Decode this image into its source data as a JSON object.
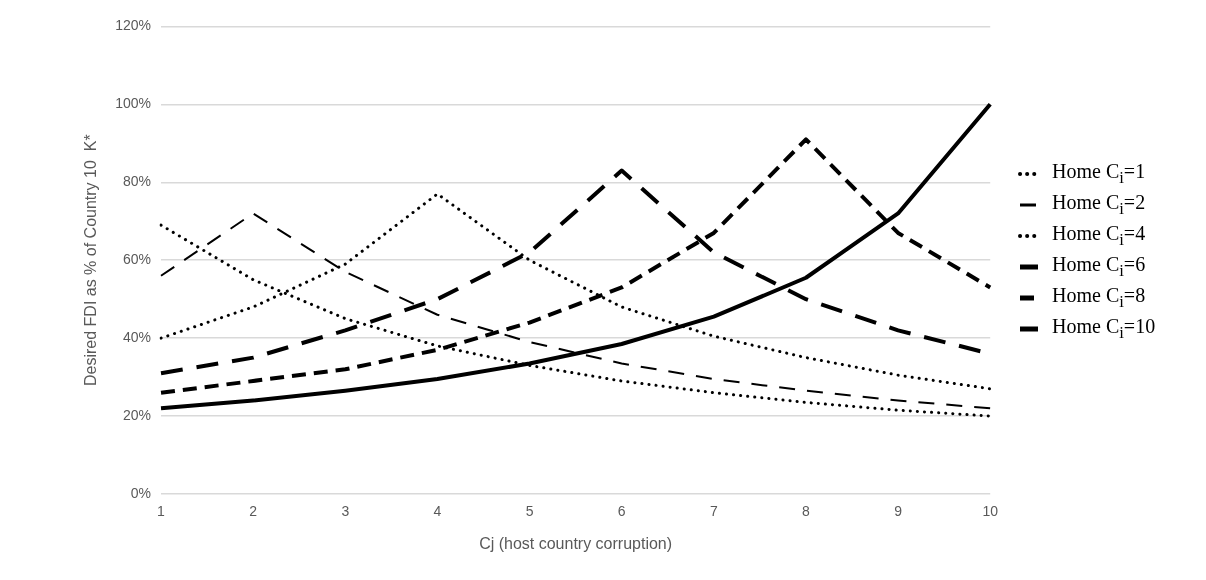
{
  "chart_data": {
    "type": "line",
    "xlabel": "Cj (host country corruption)",
    "ylabel": "Desired FDI as % of Country 10  K*",
    "categories": [
      "1",
      "2",
      "3",
      "4",
      "5",
      "6",
      "7",
      "8",
      "9",
      "10"
    ],
    "ylim": [
      0,
      120
    ],
    "yticks": [
      {
        "value": 0,
        "label": "0%"
      },
      {
        "value": 20,
        "label": "20%"
      },
      {
        "value": 40,
        "label": "40%"
      },
      {
        "value": 60,
        "label": "60%"
      },
      {
        "value": 80,
        "label": "80%"
      },
      {
        "value": 100,
        "label": "100%"
      },
      {
        "value": 120,
        "label": "120%"
      }
    ],
    "grid": "y",
    "legend": "right",
    "marker": "none",
    "series": [
      {
        "name": "Home C$_{i}$=1",
        "color": "#000000",
        "line_style": "dotted",
        "values": [
          69,
          55,
          45,
          38,
          33,
          29,
          26,
          23.5,
          21.5,
          20
        ]
      },
      {
        "name": "Home C$_{i}$=2",
        "color": "#000000",
        "line_style": "dashed",
        "values": [
          56,
          72,
          57,
          46,
          39,
          33.5,
          29.5,
          26.5,
          24,
          22
        ]
      },
      {
        "name": "Home C$_{i}$=4",
        "color": "#000000",
        "line_style": "dotted",
        "values": [
          40,
          48,
          59,
          77,
          60,
          48,
          40.5,
          35,
          30.5,
          27
        ]
      },
      {
        "name": "Home C$_{i}$=6",
        "color": "#000000",
        "line_style": "dashed",
        "values": [
          31,
          35,
          42,
          50,
          62,
          83,
          62,
          50,
          42,
          36
        ]
      },
      {
        "name": "Home C$_{i}$=8",
        "color": "#000000",
        "line_style": "dashed",
        "values": [
          26,
          29,
          32,
          37,
          44,
          53,
          67,
          91,
          67,
          53
        ]
      },
      {
        "name": "Home C$_{i}$=10",
        "color": "#000000",
        "line_style": "solid",
        "values": [
          22,
          24,
          26.5,
          29.5,
          33.5,
          38.5,
          45.5,
          55.5,
          72,
          100
        ]
      }
    ]
  }
}
